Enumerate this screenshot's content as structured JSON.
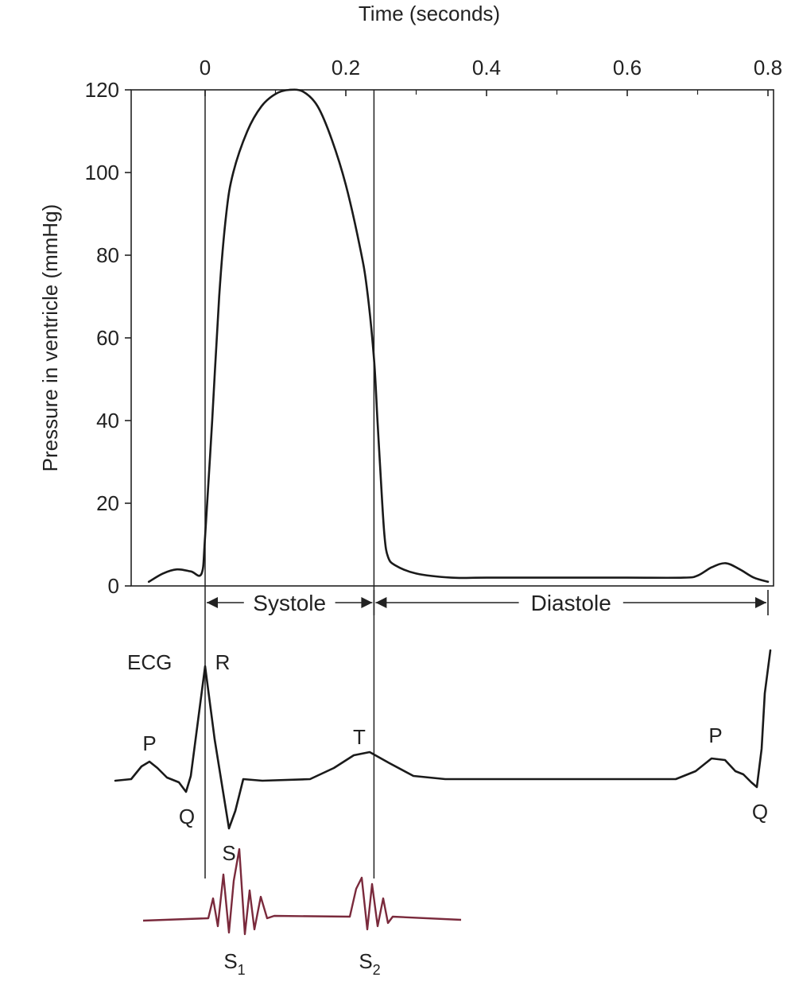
{
  "chart_data": {
    "type": "line",
    "title": "",
    "xlabel": "Time (seconds)",
    "ylabel": "Pressure in ventricle (mmHg)",
    "xlim": [
      -0.1,
      0.8
    ],
    "ylim": [
      0,
      120
    ],
    "x_ticks": [
      "0",
      "0.2",
      "0.4",
      "0.6",
      "0.8"
    ],
    "y_ticks": [
      "0",
      "20",
      "40",
      "60",
      "80",
      "100",
      "120"
    ],
    "series": [
      {
        "name": "Ventricular pressure",
        "x": [
          -0.08,
          -0.06,
          -0.04,
          -0.02,
          -0.005,
          0.0,
          0.01,
          0.02,
          0.03,
          0.04,
          0.06,
          0.08,
          0.1,
          0.12,
          0.14,
          0.16,
          0.18,
          0.2,
          0.22,
          0.23,
          0.24,
          0.245,
          0.25,
          0.255,
          0.26,
          0.27,
          0.3,
          0.35,
          0.4,
          0.5,
          0.6,
          0.68,
          0.7,
          0.72,
          0.74,
          0.76,
          0.78,
          0.8
        ],
        "values": [
          1,
          3,
          4,
          3.5,
          3,
          12,
          40,
          70,
          90,
          100,
          110,
          116,
          119,
          120,
          119.5,
          116,
          108,
          97,
          82,
          72,
          55,
          40,
          25,
          12,
          7,
          5,
          3,
          2,
          2,
          2,
          2,
          2,
          2.5,
          4.5,
          5.5,
          4,
          2,
          1
        ]
      }
    ],
    "vertical_markers": [
      0.0,
      0.24
    ],
    "phases": [
      {
        "label": "Systole",
        "from": 0.0,
        "to": 0.24
      },
      {
        "label": "Diastole",
        "from": 0.24,
        "to": 0.8
      }
    ],
    "ecg": {
      "label": "ECG",
      "waves": [
        {
          "label": "P",
          "x": -0.08
        },
        {
          "label": "Q",
          "x": -0.025
        },
        {
          "label": "R",
          "x": 0.0
        },
        {
          "label": "S",
          "x": 0.03
        },
        {
          "label": "T",
          "x": 0.24
        },
        {
          "label": "P",
          "x": 0.72
        },
        {
          "label": "Q",
          "x": 0.78
        }
      ]
    },
    "heart_sounds": [
      {
        "label": "S",
        "sub": "1",
        "x": 0.04
      },
      {
        "label": "S",
        "sub": "2",
        "x": 0.24
      }
    ]
  }
}
